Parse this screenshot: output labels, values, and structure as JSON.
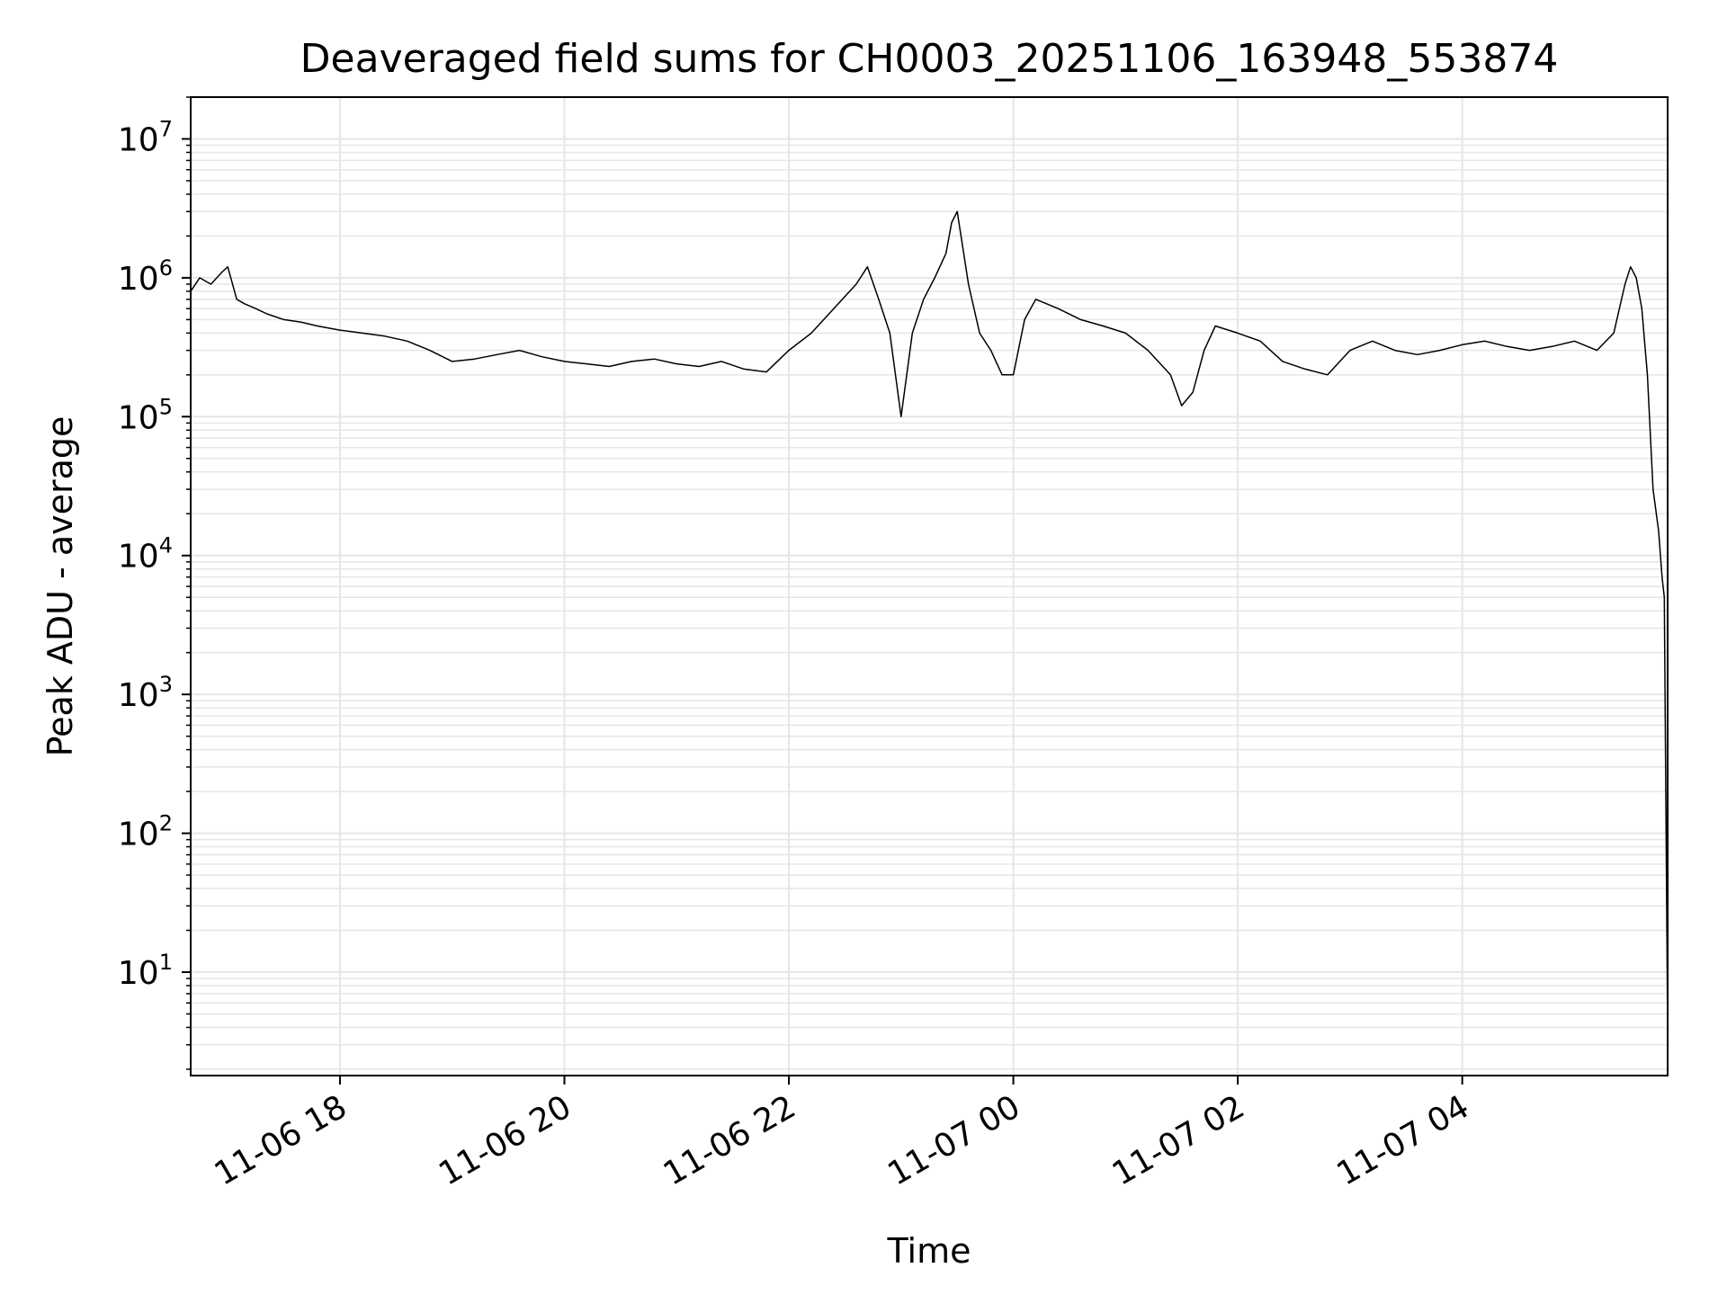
{
  "chart_data": {
    "type": "line",
    "title": "Deaveraged field sums for CH0003_20251106_163948_553874",
    "xlabel": "Time",
    "ylabel": "Peak ADU - average",
    "yscale": "log",
    "ylim": [
      1.8,
      20000000
    ],
    "xlim_hours": [
      16.67,
      29.83
    ],
    "grid": true,
    "colors": {
      "line": "#000000",
      "grid": "#e6e6e6",
      "axes": "#000000"
    },
    "x_ticks": [
      {
        "hours": 18,
        "label": "11-06 18"
      },
      {
        "hours": 20,
        "label": "11-06 20"
      },
      {
        "hours": 22,
        "label": "11-06 22"
      },
      {
        "hours": 24,
        "label": "11-07 00"
      },
      {
        "hours": 26,
        "label": "11-07 02"
      },
      {
        "hours": 28,
        "label": "11-07 04"
      }
    ],
    "y_ticks": [
      {
        "value": 10,
        "base": "10",
        "exp": "1"
      },
      {
        "value": 100,
        "base": "10",
        "exp": "2"
      },
      {
        "value": 1000,
        "base": "10",
        "exp": "3"
      },
      {
        "value": 10000,
        "base": "10",
        "exp": "4"
      },
      {
        "value": 100000,
        "base": "10",
        "exp": "5"
      },
      {
        "value": 1000000,
        "base": "10",
        "exp": "6"
      },
      {
        "value": 10000000,
        "base": "10",
        "exp": "7"
      }
    ],
    "series": [
      {
        "name": "field sums",
        "x_hours": [
          16.67,
          16.75,
          16.85,
          16.95,
          17.0,
          17.08,
          17.15,
          17.25,
          17.35,
          17.5,
          17.65,
          17.8,
          18.0,
          18.2,
          18.4,
          18.6,
          18.8,
          19.0,
          19.2,
          19.4,
          19.6,
          19.8,
          20.0,
          20.2,
          20.4,
          20.6,
          20.8,
          21.0,
          21.2,
          21.4,
          21.6,
          21.8,
          22.0,
          22.2,
          22.4,
          22.6,
          22.7,
          22.8,
          22.9,
          23.0,
          23.1,
          23.2,
          23.3,
          23.4,
          23.45,
          23.5,
          23.6,
          23.7,
          23.8,
          23.9,
          24.0,
          24.1,
          24.2,
          24.4,
          24.6,
          24.8,
          25.0,
          25.2,
          25.4,
          25.5,
          25.6,
          25.7,
          25.8,
          26.0,
          26.2,
          26.4,
          26.6,
          26.8,
          27.0,
          27.2,
          27.4,
          27.6,
          27.8,
          28.0,
          28.2,
          28.4,
          28.6,
          28.8,
          29.0,
          29.2,
          29.35,
          29.45,
          29.5,
          29.55,
          29.6,
          29.65,
          29.7,
          29.75,
          29.78,
          29.8,
          29.83
        ],
        "y_values": [
          800000,
          1000000,
          900000,
          1100000,
          1200000,
          700000,
          650000,
          600000,
          550000,
          500000,
          480000,
          450000,
          420000,
          400000,
          380000,
          350000,
          300000,
          250000,
          260000,
          280000,
          300000,
          270000,
          250000,
          240000,
          230000,
          250000,
          260000,
          240000,
          230000,
          250000,
          220000,
          210000,
          300000,
          400000,
          600000,
          900000,
          1200000,
          700000,
          400000,
          100000,
          400000,
          700000,
          1000000,
          1500000,
          2500000,
          3000000,
          900000,
          400000,
          300000,
          200000,
          200000,
          500000,
          700000,
          600000,
          500000,
          450000,
          400000,
          300000,
          200000,
          120000,
          150000,
          300000,
          450000,
          400000,
          350000,
          250000,
          220000,
          200000,
          300000,
          350000,
          300000,
          280000,
          300000,
          330000,
          350000,
          320000,
          300000,
          320000,
          350000,
          300000,
          400000,
          900000,
          1200000,
          1000000,
          600000,
          200000,
          30000,
          15000,
          7000,
          5000,
          3.8
        ]
      }
    ]
  }
}
